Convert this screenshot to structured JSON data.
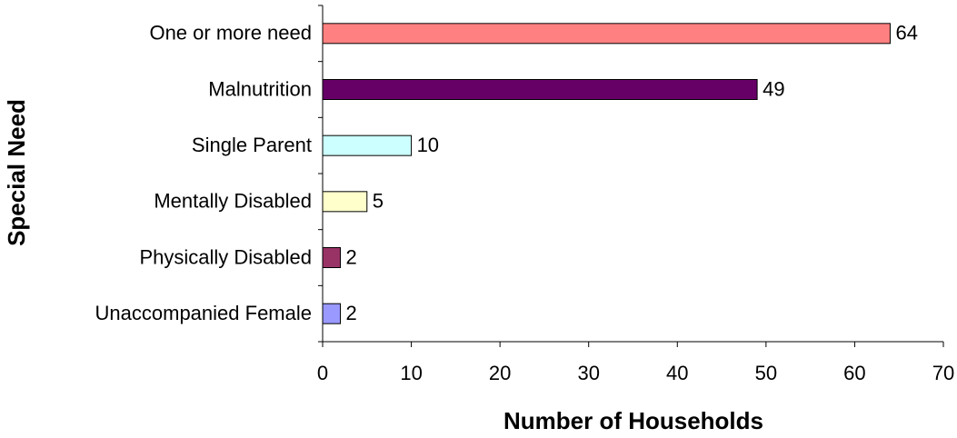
{
  "chart_data": {
    "type": "bar",
    "orientation": "horizontal",
    "xlabel": "Number of Households",
    "ylabel": "Special Need",
    "categories": [
      "One or more need",
      "Malnutrition",
      "Single Parent",
      "Mentally Disabled",
      "Physically Disabled",
      "Unaccompanied Female"
    ],
    "values": [
      64,
      49,
      10,
      5,
      2,
      2
    ],
    "colors": [
      "#ff8080",
      "#660066",
      "#ccffff",
      "#ffffcc",
      "#993366",
      "#9999ff"
    ],
    "xlim": [
      0,
      70
    ],
    "xticks": [
      0,
      10,
      20,
      30,
      40,
      50,
      60,
      70
    ],
    "grid": false
  }
}
